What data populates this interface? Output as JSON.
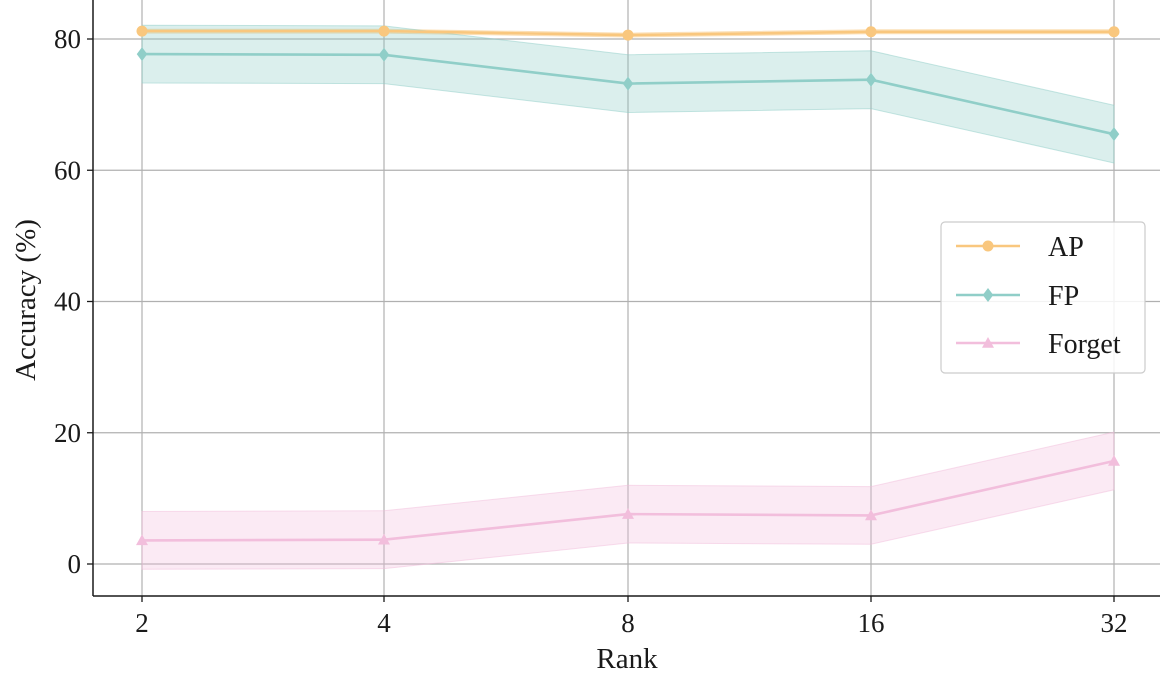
{
  "chart_data": {
    "type": "line",
    "title": "",
    "xlabel": "Rank",
    "ylabel": "Accuracy (%)",
    "categories": [
      "2",
      "4",
      "8",
      "16",
      "32"
    ],
    "ylim": [
      -5,
      86
    ],
    "yticks": [
      "0",
      "20",
      "40",
      "60",
      "80"
    ],
    "grid": true,
    "legend_position": "center-right",
    "series": [
      {
        "name": "AP",
        "marker": "circle",
        "color": "#f9c77e",
        "values": [
          81.2,
          81.2,
          80.6,
          81.1,
          81.1
        ],
        "band_low": [
          80.9,
          80.9,
          80.3,
          80.8,
          80.8
        ],
        "band_high": [
          81.5,
          81.5,
          80.9,
          81.4,
          81.4
        ]
      },
      {
        "name": "FP",
        "marker": "diamond",
        "color": "#90cec8",
        "values": [
          77.7,
          77.6,
          73.2,
          73.8,
          65.5
        ],
        "band_low": [
          73.3,
          73.2,
          68.8,
          69.4,
          61.1
        ],
        "band_high": [
          82.1,
          82.0,
          77.6,
          78.2,
          69.9
        ]
      },
      {
        "name": "Forget",
        "marker": "triangle",
        "color": "#f2bedc",
        "values": [
          3.6,
          3.7,
          7.6,
          7.4,
          15.7
        ],
        "band_low": [
          -0.8,
          -0.7,
          3.2,
          3.0,
          11.3
        ],
        "band_high": [
          8.0,
          8.1,
          12.0,
          11.8,
          20.1
        ]
      }
    ]
  }
}
